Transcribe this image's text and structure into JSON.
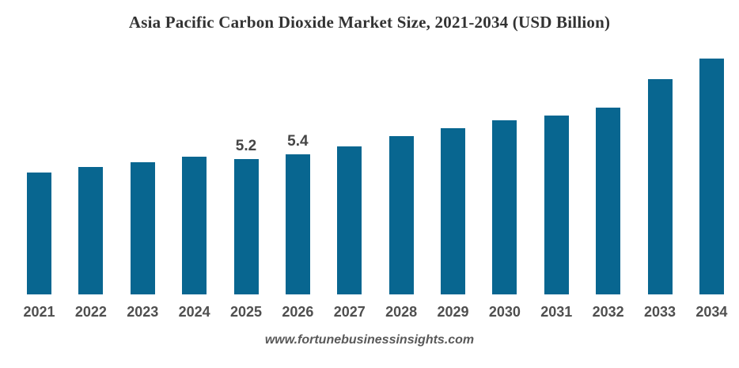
{
  "title": "Asia Pacific Carbon Dioxide Market Size, 2021-2034 (USD Billion)",
  "footer": {
    "text": "www.fortunebusinessinsights.com"
  },
  "colors": {
    "bar": "#086690",
    "title_text": "#333333",
    "axis_label_text": "#4F4F4F",
    "value_label_text": "#454545",
    "footer_text": "#595959",
    "background": "#FFFFFF"
  },
  "chart_data": {
    "type": "bar",
    "title": "Asia Pacific Carbon Dioxide Market Size, 2021-2034 (USD Billion)",
    "xlabel": "",
    "ylabel": "",
    "unit": "USD Billion",
    "categories": [
      "2021",
      "2022",
      "2023",
      "2024",
      "2025",
      "2026",
      "2027",
      "2028",
      "2029",
      "2030",
      "2031",
      "2032",
      "2033",
      "2034"
    ],
    "values": [
      4.7,
      4.9,
      5.1,
      5.3,
      5.2,
      5.4,
      5.7,
      6.1,
      6.4,
      6.7,
      6.9,
      7.2,
      8.3,
      9.1
    ],
    "data_labels": {
      "2025": "5.2",
      "2026": "5.4"
    },
    "ylim": [
      0,
      10
    ],
    "grid": false,
    "legend": "none",
    "axis_lines": "none"
  }
}
